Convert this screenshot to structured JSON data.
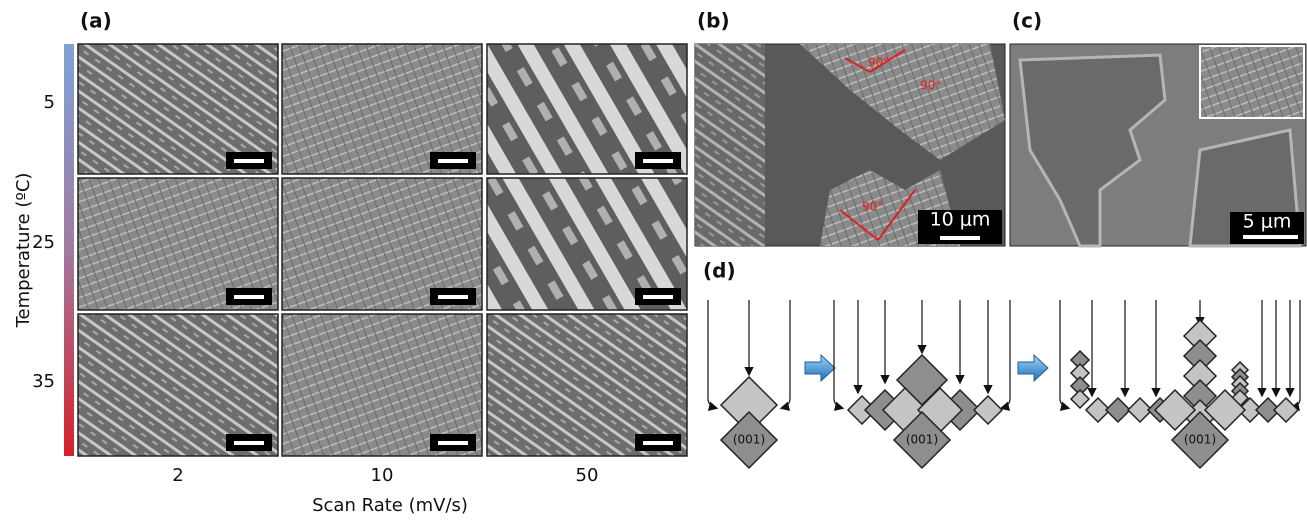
{
  "panels": {
    "a": {
      "label": "(a)",
      "y_axis_title": "Temperature (ºC)",
      "rows": [
        "5",
        "25",
        "35"
      ],
      "columns": [
        "2",
        "10",
        "50"
      ],
      "x_axis_title": "Scan Rate (mV/s)"
    },
    "b": {
      "label": "(b)",
      "scale_bar": "10 μm",
      "angles": [
        "90°",
        "90°",
        "90°"
      ]
    },
    "c": {
      "label": "(c)",
      "scale_bar": "5 μm"
    },
    "d": {
      "label": "(d)",
      "facet_labels": [
        "(001)",
        "(001)",
        "(001)"
      ]
    }
  }
}
